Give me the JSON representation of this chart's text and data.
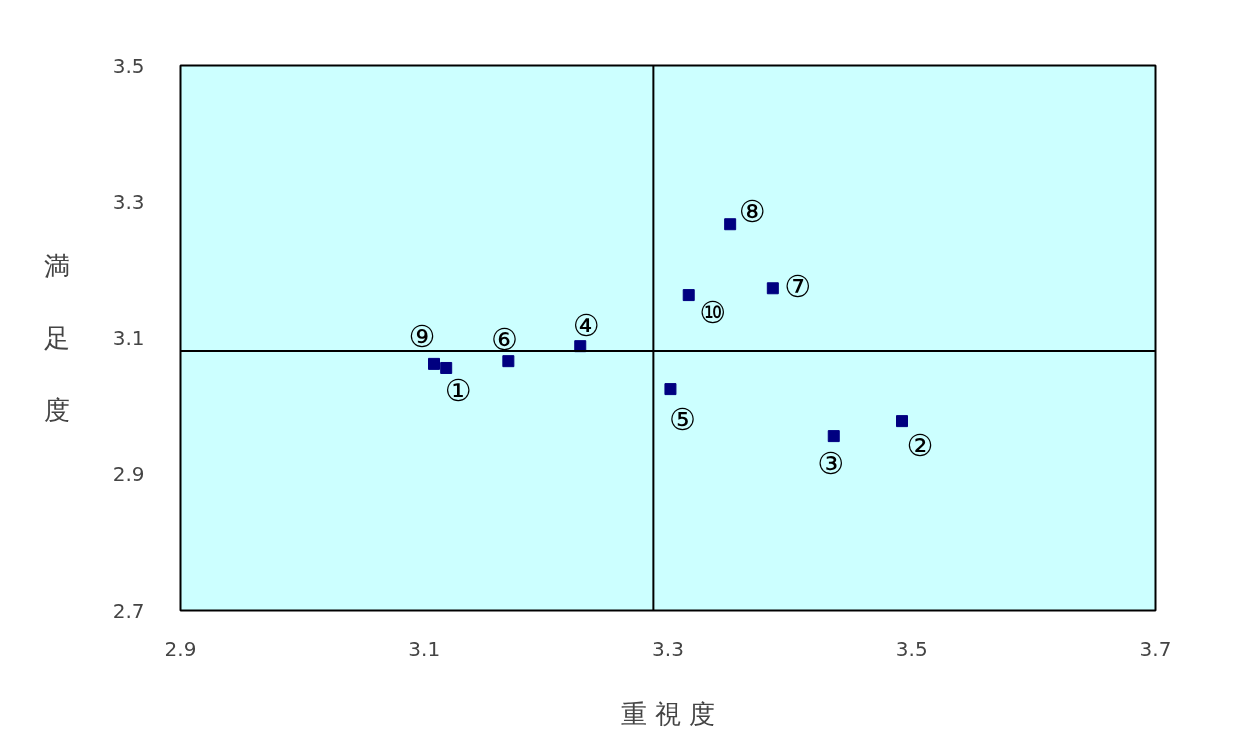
{
  "chart_data": {
    "type": "scatter",
    "xlabel": "重 視 度",
    "ylabel": "満足度",
    "x": [
      3.118,
      3.492,
      3.436,
      3.228,
      3.302,
      3.169,
      3.386,
      3.351,
      3.108,
      3.317
    ],
    "values": [
      3.056,
      2.978,
      2.956,
      3.088,
      3.025,
      3.066,
      3.173,
      3.267,
      3.062,
      3.163
    ],
    "color": "#000080",
    "marker": "square",
    "xlim": [
      2.9,
      3.7
    ],
    "ylim": [
      2.7,
      3.5
    ],
    "xticks": [
      2.9,
      3.1,
      3.3,
      3.5,
      3.7
    ],
    "yticks": [
      2.7,
      2.9,
      3.1,
      3.3,
      3.5
    ],
    "grid": false,
    "ref_lines": [
      {
        "axis": "x",
        "value": 3.288,
        "color": "#000000"
      },
      {
        "axis": "y",
        "value": 3.081,
        "color": "#000000"
      }
    ],
    "annotations": [
      "①",
      "②",
      "③",
      "④",
      "⑤",
      "⑥",
      "⑦",
      "⑧",
      "⑨",
      "⑩"
    ]
  }
}
